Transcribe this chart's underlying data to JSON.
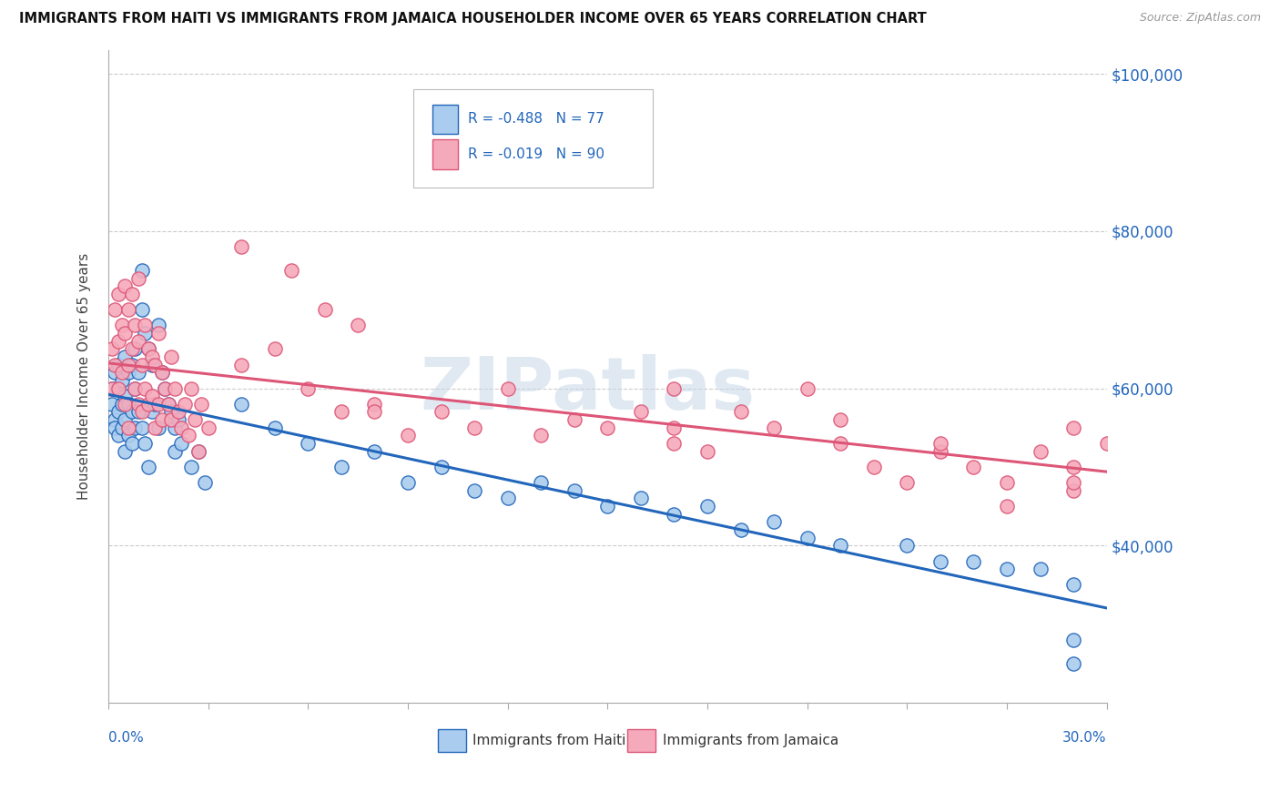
{
  "title": "IMMIGRANTS FROM HAITI VS IMMIGRANTS FROM JAMAICA HOUSEHOLDER INCOME OVER 65 YEARS CORRELATION CHART",
  "source": "Source: ZipAtlas.com",
  "ylabel": "Householder Income Over 65 years",
  "legend_haiti": "Immigrants from Haiti",
  "legend_jamaica": "Immigrants from Jamaica",
  "R_haiti": -0.488,
  "N_haiti": 77,
  "R_jamaica": -0.019,
  "N_jamaica": 90,
  "haiti_color": "#aaccee",
  "jamaica_color": "#f5aabb",
  "haiti_line_color": "#2266bb",
  "jamaica_line_color": "#dd5577",
  "watermark_color": "#c8d8e8",
  "watermark": "ZIPatlas",
  "haiti_x": [
    0.001,
    0.001,
    0.002,
    0.002,
    0.002,
    0.003,
    0.003,
    0.003,
    0.003,
    0.004,
    0.004,
    0.004,
    0.005,
    0.005,
    0.005,
    0.005,
    0.006,
    0.006,
    0.006,
    0.007,
    0.007,
    0.007,
    0.008,
    0.008,
    0.008,
    0.009,
    0.009,
    0.01,
    0.01,
    0.01,
    0.011,
    0.011,
    0.012,
    0.012,
    0.013,
    0.013,
    0.014,
    0.015,
    0.015,
    0.016,
    0.017,
    0.018,
    0.019,
    0.02,
    0.02,
    0.021,
    0.022,
    0.025,
    0.027,
    0.029,
    0.04,
    0.05,
    0.06,
    0.07,
    0.08,
    0.09,
    0.1,
    0.11,
    0.12,
    0.13,
    0.14,
    0.15,
    0.16,
    0.17,
    0.18,
    0.19,
    0.2,
    0.21,
    0.22,
    0.24,
    0.25,
    0.26,
    0.27,
    0.28,
    0.29,
    0.29,
    0.29
  ],
  "haiti_y": [
    60000,
    58000,
    62000,
    56000,
    55000,
    63000,
    60000,
    57000,
    54000,
    61000,
    58000,
    55000,
    64000,
    59000,
    56000,
    52000,
    62000,
    58000,
    54000,
    63000,
    57000,
    53000,
    65000,
    60000,
    55000,
    62000,
    57000,
    75000,
    70000,
    55000,
    67000,
    53000,
    65000,
    50000,
    63000,
    57000,
    58000,
    68000,
    55000,
    62000,
    60000,
    58000,
    57000,
    55000,
    52000,
    56000,
    53000,
    50000,
    52000,
    48000,
    58000,
    55000,
    53000,
    50000,
    52000,
    48000,
    50000,
    47000,
    46000,
    48000,
    47000,
    45000,
    46000,
    44000,
    45000,
    42000,
    43000,
    41000,
    40000,
    40000,
    38000,
    38000,
    37000,
    37000,
    35000,
    28000,
    25000
  ],
  "jamaica_x": [
    0.001,
    0.001,
    0.002,
    0.002,
    0.003,
    0.003,
    0.003,
    0.004,
    0.004,
    0.005,
    0.005,
    0.005,
    0.006,
    0.006,
    0.006,
    0.007,
    0.007,
    0.008,
    0.008,
    0.009,
    0.009,
    0.009,
    0.01,
    0.01,
    0.011,
    0.011,
    0.012,
    0.012,
    0.013,
    0.013,
    0.014,
    0.014,
    0.015,
    0.015,
    0.016,
    0.016,
    0.017,
    0.018,
    0.019,
    0.019,
    0.02,
    0.021,
    0.022,
    0.023,
    0.024,
    0.025,
    0.026,
    0.027,
    0.028,
    0.03,
    0.04,
    0.05,
    0.06,
    0.07,
    0.08,
    0.09,
    0.1,
    0.11,
    0.12,
    0.13,
    0.14,
    0.15,
    0.16,
    0.17,
    0.18,
    0.19,
    0.2,
    0.21,
    0.22,
    0.23,
    0.24,
    0.25,
    0.26,
    0.27,
    0.28,
    0.29,
    0.29,
    0.29,
    0.29,
    0.3,
    0.04,
    0.055,
    0.065,
    0.075,
    0.08,
    0.17,
    0.17,
    0.22,
    0.25,
    0.27
  ],
  "jamaica_y": [
    65000,
    60000,
    70000,
    63000,
    72000,
    66000,
    60000,
    68000,
    62000,
    73000,
    67000,
    58000,
    70000,
    63000,
    55000,
    72000,
    65000,
    68000,
    60000,
    66000,
    58000,
    74000,
    63000,
    57000,
    68000,
    60000,
    65000,
    58000,
    64000,
    59000,
    63000,
    55000,
    67000,
    58000,
    62000,
    56000,
    60000,
    58000,
    64000,
    56000,
    60000,
    57000,
    55000,
    58000,
    54000,
    60000,
    56000,
    52000,
    58000,
    55000,
    63000,
    65000,
    60000,
    57000,
    58000,
    54000,
    57000,
    55000,
    60000,
    54000,
    56000,
    55000,
    57000,
    53000,
    52000,
    57000,
    55000,
    60000,
    53000,
    50000,
    48000,
    52000,
    50000,
    48000,
    52000,
    55000,
    50000,
    47000,
    48000,
    53000,
    78000,
    75000,
    70000,
    68000,
    57000,
    60000,
    55000,
    56000,
    53000,
    45000
  ],
  "xmin": 0.0,
  "xmax": 0.3,
  "ymin": 20000,
  "ymax": 103000,
  "yticks": [
    20000,
    40000,
    60000,
    80000,
    100000
  ],
  "ytick_labels": [
    "",
    "$40,000",
    "$60,000",
    "$80,000",
    "$100,000"
  ],
  "background_color": "#ffffff",
  "grid_color": "#cccccc"
}
